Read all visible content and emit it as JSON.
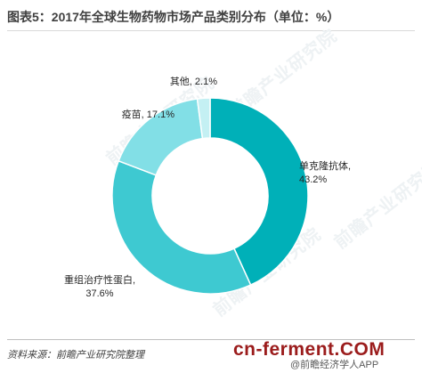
{
  "title": "图表5：2017年全球生物药物市场产品类别分布（单位：%）",
  "watermark": "前瞻产业研究院",
  "footer": {
    "source": "资料来源：前瞻产业研究院整理",
    "brand_main": "cn-ferment",
    "brand_dot": ".",
    "brand_tld": "COM",
    "brand_sub": "@前瞻经济学人APP"
  },
  "colors": {
    "单克隆抗体": "#00b0b8",
    "重组治疗性蛋白": "#3ec9d1",
    "疫苗": "#82dfe6",
    "其他": "#c4f0f3"
  },
  "chart_data": {
    "type": "pie",
    "donut": true,
    "title": "图表5：2017年全球生物药物市场产品类别分布（单位：%）",
    "categories": [
      "单克隆抗体",
      "重组治疗性蛋白",
      "疫苗",
      "其他"
    ],
    "values": [
      43.2,
      37.6,
      17.1,
      2.1
    ],
    "unit": "%",
    "labels": [
      {
        "name": "单克隆抗体",
        "value": "43.2%"
      },
      {
        "name": "重组治疗性蛋白",
        "value": "37.6%"
      },
      {
        "name": "疫苗",
        "value": "17.1%"
      },
      {
        "name": "其他",
        "value": "2.1%"
      }
    ]
  }
}
